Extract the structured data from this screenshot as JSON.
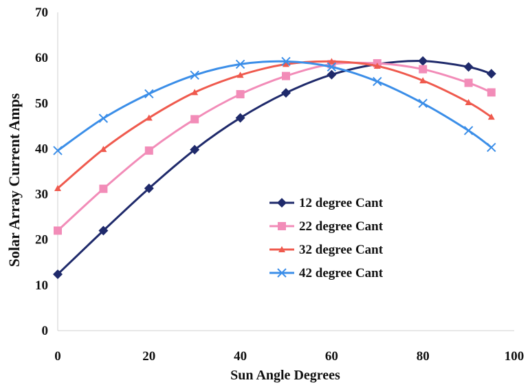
{
  "chart_data": {
    "type": "line",
    "xlabel": "Sun Angle Degrees",
    "ylabel": "Solar Array Current Amps",
    "xlim": [
      0,
      100
    ],
    "ylim": [
      0,
      70
    ],
    "xticks": [
      "0",
      "20",
      "40",
      "60",
      "80",
      "100"
    ],
    "yticks": [
      "0",
      "10",
      "20",
      "30",
      "40",
      "50",
      "60",
      "70"
    ],
    "grid": false,
    "legend_position": "center-right",
    "x": [
      0,
      10,
      20,
      30,
      40,
      50,
      60,
      70,
      80,
      90,
      95
    ],
    "series": [
      {
        "name": "12 degree Cant",
        "marker": "diamond",
        "color": "#1f2a6b",
        "values": [
          12.4,
          22.0,
          31.3,
          39.8,
          46.8,
          52.3,
          56.3,
          58.6,
          59.3,
          58.0,
          56.5
        ]
      },
      {
        "name": "22 degree Cant",
        "marker": "square",
        "color": "#f28cb8",
        "values": [
          22.0,
          31.2,
          39.6,
          46.5,
          52.0,
          56.0,
          58.6,
          58.8,
          57.5,
          54.5,
          52.4
        ]
      },
      {
        "name": "32 degree Cant",
        "marker": "triangle",
        "color": "#ef5a4e",
        "values": [
          31.3,
          39.9,
          46.8,
          52.4,
          56.2,
          58.6,
          59.2,
          58.2,
          55.0,
          50.2,
          47.0
        ]
      },
      {
        "name": "42 degree Cant",
        "marker": "x",
        "color": "#3b8ee8",
        "values": [
          39.6,
          46.7,
          52.1,
          56.2,
          58.6,
          59.2,
          58.0,
          54.8,
          50.0,
          44.0,
          40.3
        ]
      }
    ]
  }
}
